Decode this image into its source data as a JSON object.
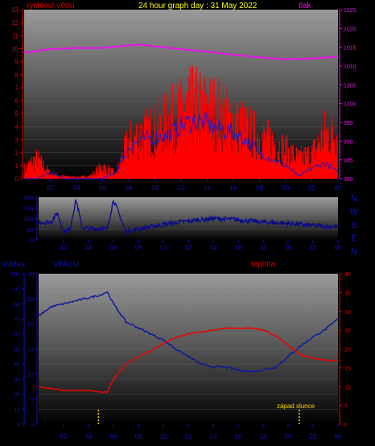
{
  "colors": {
    "frame_bg": "#000000",
    "wind_speed": "#ff0000",
    "wind_avg": "#1a1acc",
    "pressure": "#ee10ee",
    "direction": "#0a0a8c",
    "humidity": "#0a1a9a",
    "temperature": "#ee0000",
    "sunset_marker": "#ffd400",
    "axis_blue": "#1010c0",
    "axis_red": "#dd0000",
    "title_yellow": "#ffff00"
  },
  "chart_data": [
    {
      "type": "line",
      "title": "24 hour graph day : 31 May 2022",
      "left_axis_label": "rychlost větru",
      "right_axis_label": "tlak",
      "x_ticks": [
        "02",
        "04",
        "06",
        "08",
        "10",
        "12",
        "14",
        "16",
        "18",
        "20",
        "22",
        "00"
      ],
      "y_left_ticks": [
        "0",
        "1",
        "2",
        "3",
        "4",
        "5",
        "6",
        "7",
        "8",
        "9",
        "10",
        "11",
        "12",
        "13"
      ],
      "y_left_lim": [
        0,
        13
      ],
      "y_right_ticks": [
        "980",
        "985",
        "990",
        "995",
        "1000",
        "1005",
        "1010",
        "1015",
        "1020",
        "1025"
      ],
      "y_right_lim": [
        980,
        1025
      ],
      "series": [
        {
          "key": "wind_gust",
          "type": "bar",
          "x": [
            0,
            1,
            2,
            3,
            4,
            5,
            6,
            7,
            8,
            9,
            10,
            11,
            12,
            13,
            14,
            15,
            16,
            17,
            18,
            19,
            20,
            21,
            22,
            23
          ],
          "values": [
            1.2,
            2.5,
            0.6,
            0.3,
            0.2,
            0.3,
            1.5,
            0.6,
            4.5,
            5.5,
            6.0,
            7.0,
            8.0,
            9.0,
            8.5,
            8.0,
            7.0,
            6.0,
            5.0,
            4.5,
            3.5,
            2.5,
            3.0,
            5.5
          ]
        },
        {
          "key": "wind_avg",
          "type": "line",
          "x": [
            0,
            1,
            2,
            3,
            4,
            5,
            6,
            7,
            8,
            9,
            10,
            11,
            12,
            13,
            14,
            15,
            16,
            17,
            18,
            19,
            20,
            21,
            22,
            23,
            24
          ],
          "values": [
            0,
            0,
            0.5,
            0,
            0,
            0,
            0,
            0.5,
            2.5,
            3.0,
            3.2,
            3.4,
            4.0,
            4.5,
            4.2,
            3.8,
            3.5,
            3.0,
            2.0,
            1.5,
            1.0,
            0.2,
            0.8,
            1.2,
            0.5
          ]
        },
        {
          "key": "pressure",
          "type": "line",
          "axis": "right",
          "x": [
            0,
            2,
            4,
            6,
            8,
            9,
            10,
            12,
            14,
            16,
            18,
            20,
            22,
            24
          ],
          "values": [
            1013.5,
            1014.5,
            1014.8,
            1014.8,
            1015.5,
            1015.7,
            1015.2,
            1014.5,
            1013.8,
            1013.0,
            1012.3,
            1011.8,
            1012.0,
            1012.5
          ]
        }
      ]
    },
    {
      "type": "line",
      "x_ticks": [
        "02",
        "04",
        "06",
        "08",
        "10",
        "12",
        "14",
        "16",
        "18",
        "20",
        "22",
        "00"
      ],
      "y_ticks": [
        "0",
        "90",
        "180",
        "270",
        "360"
      ],
      "ylim": [
        0,
        360
      ],
      "compass_labels": [
        "N",
        "W",
        "S",
        "E",
        "N"
      ],
      "series": [
        {
          "key": "wind_direction",
          "x": [
            0,
            1,
            1.5,
            2,
            2.5,
            3,
            3.5,
            4,
            4.5,
            5,
            5.5,
            6,
            7,
            8,
            9,
            10,
            11,
            12,
            13,
            14,
            15,
            16,
            17,
            18,
            19,
            20,
            21,
            22,
            23,
            24
          ],
          "values": [
            150,
            150,
            230,
            70,
            90,
            340,
            100,
            95,
            90,
            100,
            90,
            340,
            70,
            90,
            110,
            130,
            145,
            160,
            170,
            180,
            175,
            170,
            160,
            150,
            145,
            140,
            130,
            120,
            115,
            110
          ]
        }
      ]
    },
    {
      "type": "line",
      "left_axis_label": "srážky",
      "middle_axis_label": "vlhkost",
      "right_axis_label": "teplota",
      "annotation": "západ slunce",
      "x_ticks": [
        "02",
        "04",
        "06",
        "08",
        "10",
        "12",
        "14",
        "16",
        "18",
        "20",
        "22",
        "00"
      ],
      "y_rain_ticks": [
        "0",
        "10",
        "20",
        "30",
        "40",
        "50",
        "60",
        "70",
        "80",
        "90",
        "100"
      ],
      "y_rain_lim": [
        0,
        100
      ],
      "y_humidity_ticks": [
        "0",
        "5",
        "10",
        "15",
        "20",
        "25",
        "30"
      ],
      "y_humidity_lim": [
        0,
        30
      ],
      "y_temperature_ticks": [
        "0",
        "5",
        "10",
        "15",
        "20",
        "25",
        "30",
        "35",
        "40"
      ],
      "y_temperature_lim": [
        0,
        40
      ],
      "series": [
        {
          "key": "humidity",
          "x": [
            0,
            1,
            2,
            3,
            4,
            5,
            5.5,
            6,
            7,
            8,
            9,
            10,
            11,
            12,
            13,
            14,
            15,
            16,
            17,
            18,
            19,
            20,
            21,
            22,
            23,
            24
          ],
          "values": [
            72,
            78,
            80,
            82,
            84,
            86,
            88,
            80,
            68,
            64,
            60,
            56,
            50,
            45,
            40,
            38,
            38,
            36,
            35,
            36,
            38,
            45,
            52,
            58,
            63,
            70
          ]
        },
        {
          "key": "temperature",
          "x": [
            0,
            1,
            2,
            3,
            4,
            5,
            5.5,
            6,
            7,
            8,
            9,
            10,
            11,
            12,
            13,
            14,
            15,
            16,
            17,
            18,
            19,
            20,
            21,
            22,
            23,
            24
          ],
          "values": [
            10,
            9.5,
            9,
            9,
            9,
            8.5,
            8.5,
            12,
            16,
            18,
            19.5,
            21.5,
            23,
            24,
            24.5,
            25,
            25.5,
            25.5,
            25.5,
            25,
            23.5,
            21,
            18.5,
            17.5,
            17,
            17
          ]
        }
      ],
      "markers": [
        {
          "key": "sunrise",
          "x": 4.8
        },
        {
          "key": "sunset",
          "x": 20.9
        }
      ]
    }
  ]
}
